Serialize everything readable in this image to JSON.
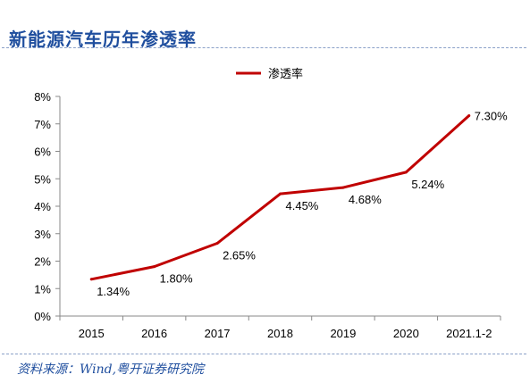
{
  "header": {
    "title": "新能源汽车历年渗透率"
  },
  "footer": {
    "source": "资料来源：Wind,粤开证券研究院"
  },
  "chart_data": {
    "type": "line",
    "title": "",
    "xlabel": "",
    "ylabel": "",
    "categories": [
      "2015",
      "2016",
      "2017",
      "2018",
      "2019",
      "2020",
      "2021.1-2"
    ],
    "series": [
      {
        "name": "渗透率",
        "values": [
          1.34,
          1.8,
          2.65,
          4.45,
          4.68,
          5.24,
          7.3
        ]
      }
    ],
    "data_labels": [
      "1.34%",
      "1.80%",
      "2.65%",
      "4.45%",
      "4.68%",
      "5.24%",
      "7.30%"
    ],
    "ylim": [
      0,
      8
    ],
    "yticks": [
      "0%",
      "1%",
      "2%",
      "3%",
      "4%",
      "5%",
      "6%",
      "7%",
      "8%"
    ],
    "legend_position": "top-center",
    "grid": false,
    "line_color": "#c00000",
    "axis_color": "#888888"
  }
}
